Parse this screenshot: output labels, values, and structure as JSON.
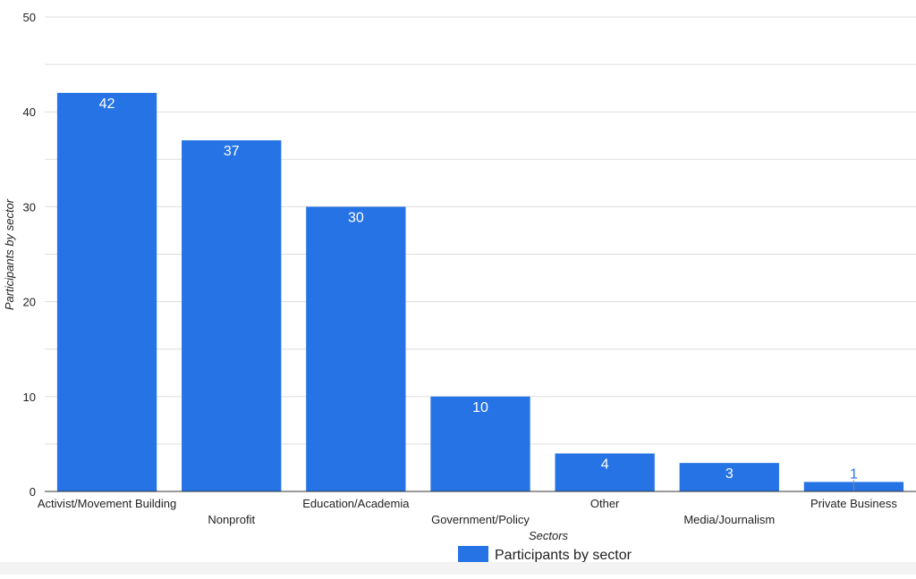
{
  "chart_data": {
    "type": "bar",
    "categories": [
      "Activist/Movement Building",
      "Nonprofit",
      "Education/Academia",
      "Government/Policy",
      "Other",
      "Media/Journalism",
      "Private Business"
    ],
    "series": [
      {
        "name": "Participants by sector",
        "values": [
          42,
          37,
          30,
          10,
          4,
          3,
          1
        ]
      }
    ],
    "xlabel": "Sectors",
    "ylabel": "Participants by sector",
    "ylim": [
      0,
      50
    ],
    "yticks": [
      0,
      10,
      20,
      30,
      40,
      50
    ],
    "grid": true,
    "legend_position": "bottom",
    "colors": {
      "bar": "#2673e6",
      "label_inside": "#ffffff",
      "label_outside": "#2673e6",
      "grid": "#dddddd",
      "axis": "#333333"
    }
  }
}
